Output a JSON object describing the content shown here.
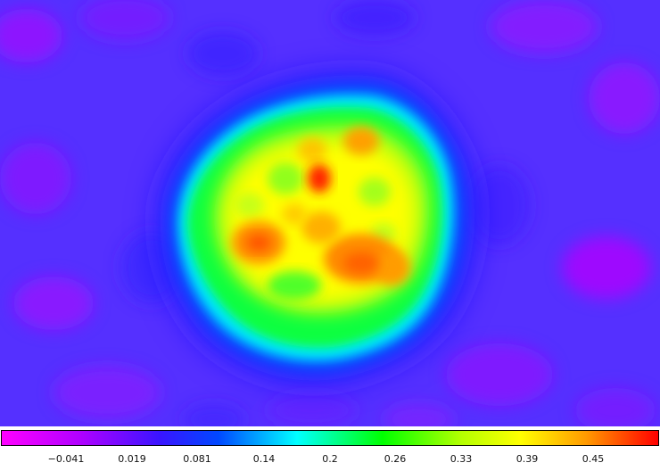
{
  "image": {
    "description_icon": "heatmap-image",
    "colormap": {
      "stops": [
        "#ff00ff",
        "#b000ff",
        "#3a14ff",
        "#0048ff",
        "#00ffff",
        "#00ff00",
        "#b4ff00",
        "#ffff00",
        "#ff9a00",
        "#ff0000"
      ]
    }
  },
  "colorbar": {
    "tick_labels": [
      "−0.041",
      "0.019",
      "0.081",
      "0.14",
      "0.2",
      "0.26",
      "0.33",
      "0.39",
      "0.45"
    ]
  }
}
